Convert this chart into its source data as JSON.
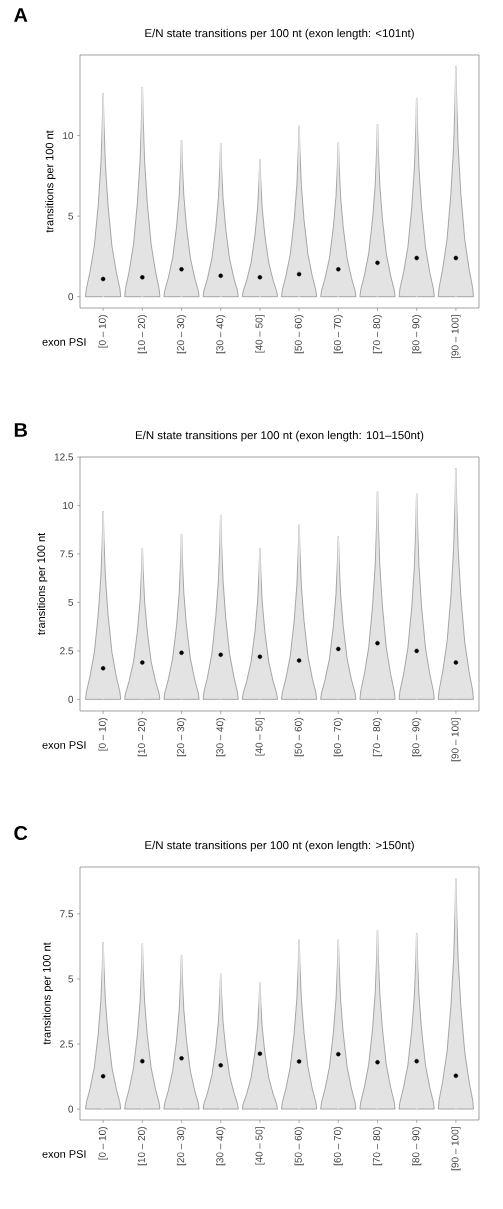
{
  "chart_data": [
    {
      "type": "bar",
      "title": "E/N state transitions per 100 nt (exon length: <101nt)",
      "xlabel": "exon PSI",
      "ylabel": "transitions per 100 nt",
      "annotations": [
        "A"
      ],
      "categories": [
        "[0 – 10)",
        "[10 – 20)",
        "[20 – 30)",
        "[30 – 40)",
        "[40 – 50]",
        "[50 – 60)",
        "[60 – 70)",
        "[70 – 80)",
        "[80 – 90)",
        "[90 – 100]"
      ],
      "ylim": [
        -0.7,
        15.0
      ],
      "yticks": [
        0,
        5,
        10
      ],
      "series": [
        {
          "color": "#e3e3e3",
          "values": [
            12.6,
            13.0,
            9.7,
            9.5,
            8.5,
            10.6,
            9.6,
            10.7,
            12.3,
            14.3
          ]
        },
        {
          "type": "scatter",
          "marker": "circle",
          "color": "#000000",
          "values": [
            1.1,
            1.2,
            1.7,
            1.3,
            1.2,
            1.4,
            1.7,
            2.1,
            2.4,
            2.4
          ]
        }
      ]
    },
    {
      "type": "bar",
      "title": "E/N state transitions per 100 nt (exon length: 101–150nt)",
      "xlabel": "exon PSI",
      "ylabel": "transitions per 100 nt",
      "annotations": [
        "B"
      ],
      "categories": [
        "[0 – 10)",
        "[10 – 20)",
        "[20 – 30)",
        "[30 – 40)",
        "[40 – 50]",
        "[50 – 60)",
        "[60 – 70)",
        "[70 – 80)",
        "[80 – 90)",
        "[90 – 100]"
      ],
      "ylim": [
        -0.6,
        12.5
      ],
      "yticks": [
        0,
        2.5,
        5,
        7.5,
        10,
        12.5
      ],
      "series": [
        {
          "color": "#e3e3e3",
          "values": [
            9.7,
            7.8,
            8.5,
            9.5,
            7.8,
            9.0,
            8.4,
            10.7,
            10.6,
            11.9
          ]
        },
        {
          "type": "scatter",
          "marker": "circle",
          "color": "#000000",
          "values": [
            1.6,
            1.9,
            2.4,
            2.3,
            2.2,
            2.0,
            2.6,
            2.9,
            2.5,
            1.9
          ]
        }
      ]
    },
    {
      "type": "bar",
      "title": "E/N state transitions per 100 nt (exon length: >150nt)",
      "xlabel": "exon PSI",
      "ylabel": "transitions per 100 nt",
      "annotations": [
        "C"
      ],
      "categories": [
        "[0 – 10)",
        "[10 – 20)",
        "[20 – 30)",
        "[30 – 40)",
        "[40 – 50]",
        "[50 – 60)",
        "[60 – 70)",
        "[70 – 80)",
        "[80 – 90)",
        "[90 – 100]"
      ],
      "ylim": [
        -0.42,
        9.3
      ],
      "yticks": [
        0,
        2.5,
        5,
        7.5
      ],
      "series": [
        {
          "color": "#e3e3e3",
          "values": [
            6.4,
            6.35,
            5.9,
            5.2,
            4.85,
            6.5,
            6.5,
            6.85,
            6.75,
            8.85
          ]
        },
        {
          "type": "scatter",
          "marker": "circle",
          "color": "#000000",
          "values": [
            1.26,
            1.84,
            1.95,
            1.68,
            2.13,
            1.83,
            2.11,
            1.8,
            1.84,
            1.28
          ]
        }
      ]
    }
  ]
}
